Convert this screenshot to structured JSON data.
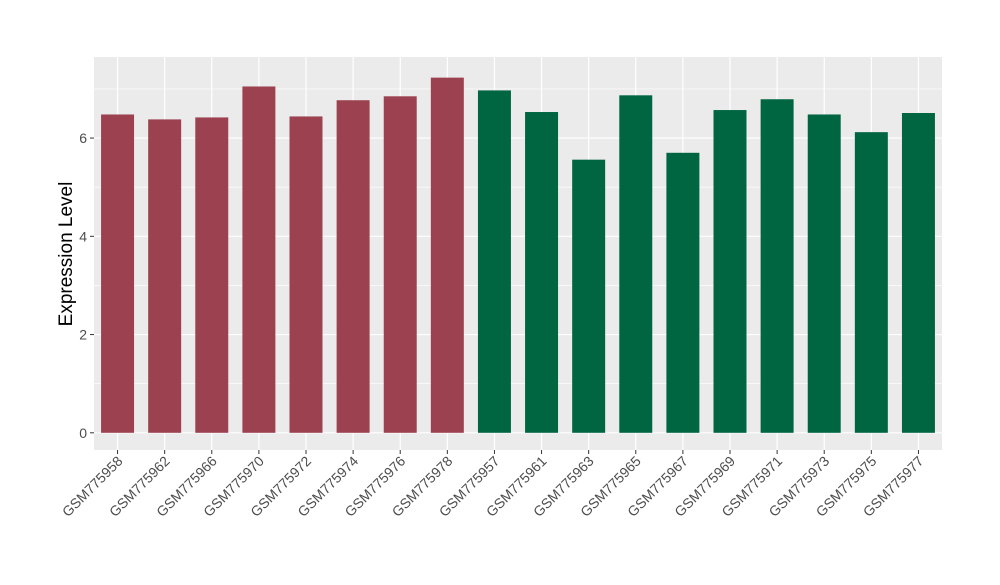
{
  "chart_data": {
    "type": "bar",
    "title": "",
    "xlabel": "",
    "ylabel": "Expression Level",
    "ylim": [
      -0.35,
      7.65
    ],
    "yticks": [
      0,
      2,
      4,
      6
    ],
    "grid": true,
    "legend": "none",
    "categories": [
      "GSM775958",
      "GSM775962",
      "GSM775966",
      "GSM775970",
      "GSM775972",
      "GSM775974",
      "GSM775976",
      "GSM775978",
      "GSM775957",
      "GSM775961",
      "GSM775963",
      "GSM775965",
      "GSM775967",
      "GSM775969",
      "GSM775971",
      "GSM775973",
      "GSM775975",
      "GSM775977"
    ],
    "values": [
      6.48,
      6.38,
      6.42,
      7.05,
      6.44,
      6.77,
      6.85,
      7.23,
      6.97,
      6.53,
      5.56,
      6.87,
      5.7,
      6.57,
      6.79,
      6.48,
      6.12,
      6.51
    ],
    "group_colors": [
      "#9C4150",
      "#9C4150",
      "#9C4150",
      "#9C4150",
      "#9C4150",
      "#9C4150",
      "#9C4150",
      "#9C4150",
      "#006541",
      "#006541",
      "#006541",
      "#006541",
      "#006541",
      "#006541",
      "#006541",
      "#006541",
      "#006541",
      "#006541"
    ],
    "panel_background": "#EBEBEB"
  }
}
